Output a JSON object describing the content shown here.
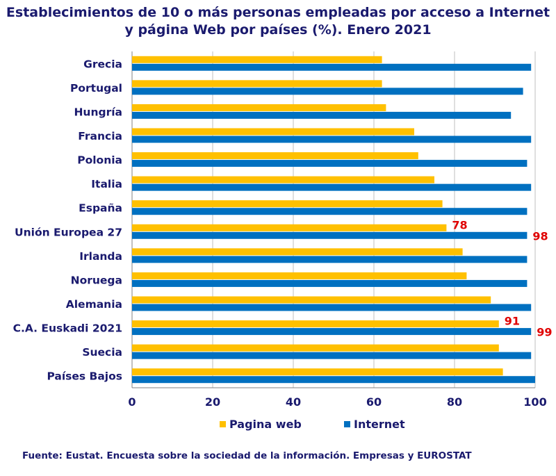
{
  "title_line1": "Establecimientos de 10 o más personas empleadas por acceso a Internet",
  "title_line2": "y página Web por países (%). Enero 2021",
  "footer": "Fuente: Eustat. Encuesta sobre la sociedad de la información. Empresas y EUROSTAT",
  "colors": {
    "web": "#FFC000",
    "internet": "#0070C0",
    "label_red": "#E00000",
    "text": "#1a1a6e",
    "grid": "#bfbfbf"
  },
  "chart_data": {
    "type": "bar",
    "orientation": "horizontal",
    "title": "Establecimientos de 10 o más personas empleadas por acceso a Internet y página Web por países (%). Enero 2021",
    "categories": [
      "Grecia",
      "Portugal",
      "Hungría",
      "Francia",
      "Polonia",
      "Italia",
      "España",
      "Unión Europea 27",
      "Irlanda",
      "Noruega",
      "Alemania",
      "C.A. Euskadi 2021",
      "Suecia",
      "Países Bajos"
    ],
    "series": [
      {
        "name": "Pagina web",
        "values": [
          62,
          62,
          63,
          70,
          71,
          75,
          77,
          78,
          82,
          83,
          89,
          91,
          91,
          92
        ]
      },
      {
        "name": "Internet",
        "values": [
          99,
          97,
          94,
          99,
          98,
          99,
          98,
          98,
          98,
          98,
          99,
          99,
          99,
          100
        ]
      }
    ],
    "data_labels": [
      {
        "category": "Unión Europea 27",
        "series": "Pagina web",
        "text": "78"
      },
      {
        "category": "Unión Europea 27",
        "series": "Internet",
        "text": "98"
      },
      {
        "category": "C.A. Euskadi 2021",
        "series": "Pagina web",
        "text": "91"
      },
      {
        "category": "C.A. Euskadi 2021",
        "series": "Internet",
        "text": "99"
      }
    ],
    "xlim": [
      0,
      100
    ],
    "xticks": [
      0,
      20,
      40,
      60,
      80,
      100
    ],
    "xtick_labels": [
      "0",
      "20",
      "40",
      "60",
      "80",
      "100"
    ],
    "grid": true,
    "legend_position": "bottom"
  }
}
